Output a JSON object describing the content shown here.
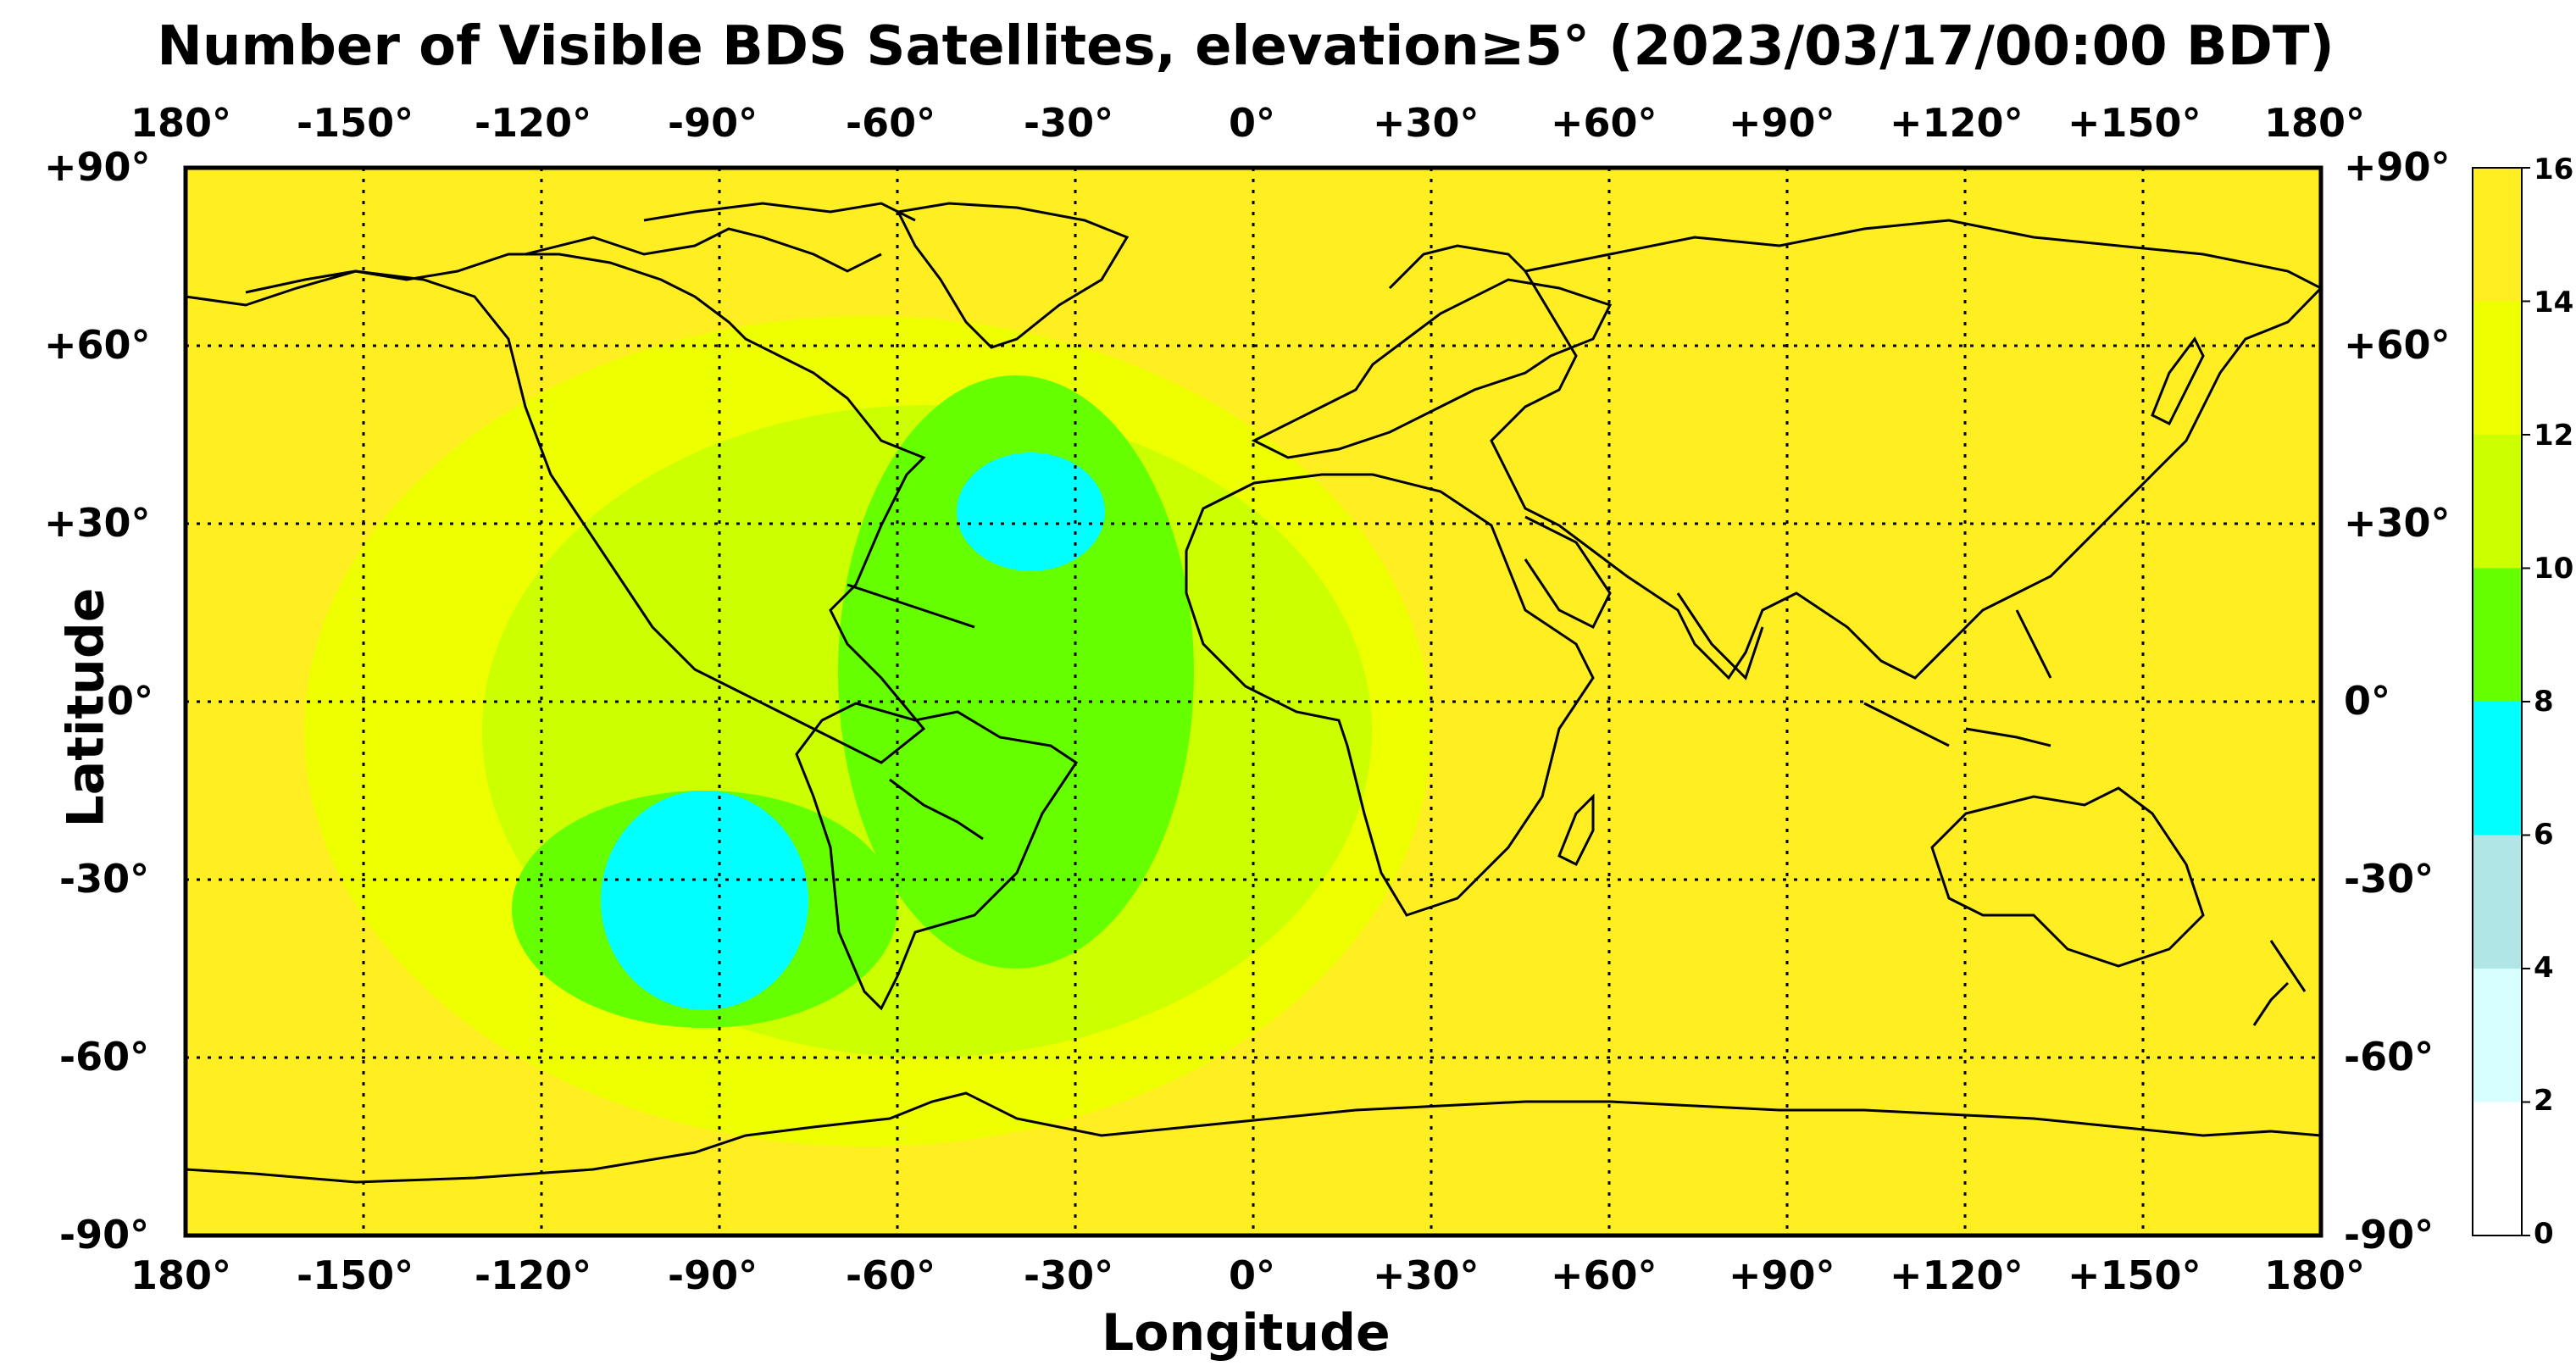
{
  "title": "Number of Visible BDS Satellites, elevation≥5° (2023/03/17/00:00 BDT)",
  "xlabel": "Longitude",
  "ylabel": "Latitude",
  "lon_ticks": [
    "180°",
    "-150°",
    "-120°",
    "-90°",
    "-60°",
    "-30°",
    "0°",
    "+30°",
    "+60°",
    "+90°",
    "+120°",
    "+150°",
    "180°"
  ],
  "lat_ticks": [
    "+90°",
    "+60°",
    "+30°",
    "0°",
    "-30°",
    "-60°",
    "-90°"
  ],
  "colorbar": {
    "ticks": [
      "0",
      "2",
      "4",
      "6",
      "8",
      "10",
      "12",
      "14",
      "16"
    ],
    "colors": [
      "#ffffff",
      "#d8ffff",
      "#b0e6e6",
      "#00ffff",
      "#66ff00",
      "#ccff00",
      "#eeff00",
      "#ffee22"
    ]
  },
  "chart_data": {
    "type": "heatmap",
    "title": "Number of Visible BDS Satellites, elevation≥5° (2023/03/17/00:00 BDT)",
    "xlabel": "Longitude",
    "ylabel": "Latitude",
    "xlim": [
      -180,
      180
    ],
    "ylim": [
      -90,
      90
    ],
    "value_range": [
      0,
      16
    ],
    "colorbar_levels": [
      0,
      2,
      4,
      6,
      8,
      10,
      12,
      14,
      16
    ],
    "background_value": 15,
    "regions": [
      {
        "value": 13,
        "lon": [
          -160,
          30
        ],
        "lat": [
          -75,
          65
        ]
      },
      {
        "value": 11,
        "lon": [
          -130,
          20
        ],
        "lat": [
          -60,
          50
        ]
      },
      {
        "value": 9,
        "lon": [
          -70,
          -10
        ],
        "lat": [
          -45,
          55
        ]
      },
      {
        "value": 9,
        "lon": [
          -125,
          -60
        ],
        "lat": [
          -55,
          -15
        ]
      },
      {
        "value": 7,
        "lon": [
          -50,
          -25
        ],
        "lat": [
          22,
          42
        ]
      },
      {
        "value": 7,
        "lon": [
          -110,
          -75
        ],
        "lat": [
          -52,
          -15
        ]
      }
    ],
    "grid": true
  }
}
